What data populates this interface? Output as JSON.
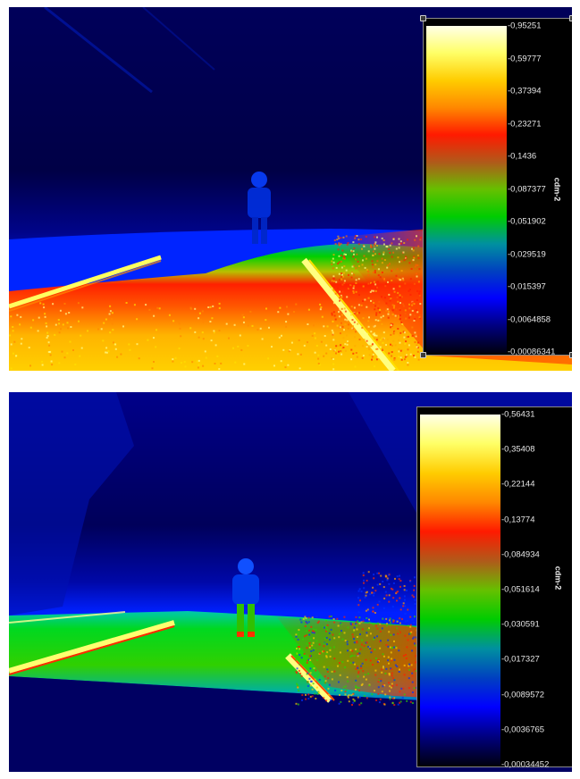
{
  "panels": [
    {
      "legend": {
        "unit": "cdm-2",
        "ticks": [
          "0,95251",
          "0,59777",
          "0,37394",
          "0,23271",
          "0,1436",
          "0,087377",
          "0,051902",
          "0,029519",
          "0,015397",
          "0,0064858",
          "0,00086341"
        ]
      }
    },
    {
      "legend": {
        "unit": "cdm-2",
        "ticks": [
          "0,56431",
          "0,35408",
          "0,22144",
          "0,13774",
          "0,084934",
          "0,051614",
          "0,030591",
          "0,017327",
          "0,0089572",
          "0,0036765",
          "0,00034452"
        ]
      }
    }
  ],
  "colormap": [
    "#ffffe8",
    "#ffff66",
    "#ffcc00",
    "#ff8800",
    "#ff1a00",
    "#b05a1a",
    "#66c000",
    "#00cc00",
    "#0090a0",
    "#0040c0",
    "#0000ff",
    "#000080",
    "#000010"
  ]
}
